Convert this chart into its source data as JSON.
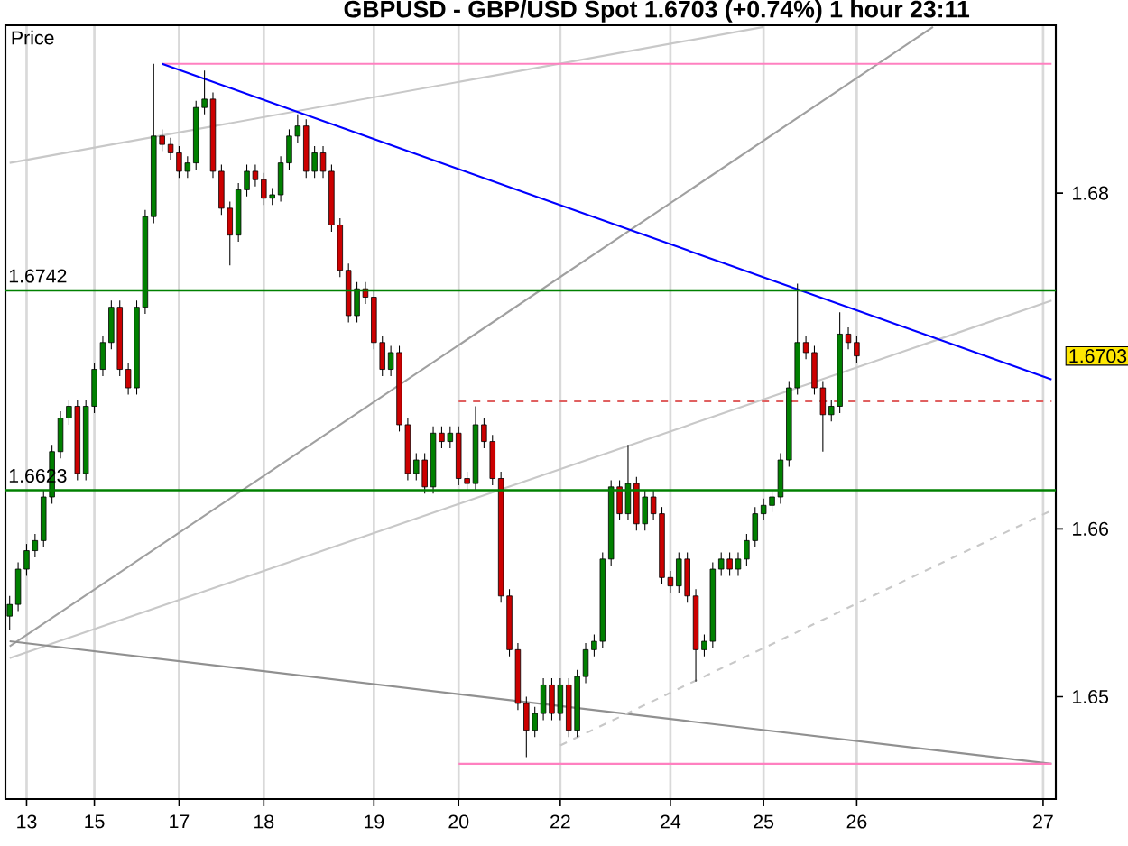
{
  "chart_data": {
    "type": "candlestick",
    "title": "GBPUSD - GBP/USD Spot    1.6703 (+0.74%)    1 hour   23:11",
    "ylabel": "Price",
    "categories": [
      null,
      null,
      "13",
      null,
      null,
      null,
      null,
      null,
      null,
      null,
      "15",
      null,
      null,
      null,
      null,
      null,
      null,
      null,
      null,
      null,
      "17",
      null,
      null,
      null,
      null,
      null,
      null,
      null,
      null,
      null,
      "18",
      null,
      null,
      null,
      null,
      null,
      null,
      null,
      null,
      null,
      null,
      null,
      null,
      "19",
      null,
      null,
      null,
      null,
      null,
      null,
      null,
      null,
      null,
      "20",
      null,
      null,
      null,
      null,
      null,
      null,
      null,
      null,
      null,
      null,
      null,
      "22",
      null,
      null,
      null,
      null,
      null,
      null,
      null,
      null,
      null,
      null,
      null,
      null,
      "24",
      null,
      null,
      null,
      null,
      null,
      null,
      null,
      null,
      null,
      null,
      "25",
      null,
      null,
      null,
      null,
      null,
      null,
      null,
      null,
      null,
      null,
      "26",
      null,
      null,
      null,
      null,
      null,
      null,
      null,
      null,
      null,
      null,
      null,
      null,
      null,
      null,
      null,
      null,
      null,
      null,
      null,
      null,
      null,
      "27",
      null
    ],
    "ohlc": [
      [
        1.6548,
        1.656,
        1.654,
        1.6555
      ],
      [
        1.6555,
        1.658,
        1.6551,
        1.6576
      ],
      [
        1.6576,
        1.6591,
        1.6572,
        1.6587
      ],
      [
        1.6587,
        1.6597,
        1.6583,
        1.6593
      ],
      [
        1.6593,
        1.6623,
        1.6589,
        1.6619
      ],
      [
        1.6619,
        1.665,
        1.6615,
        1.6646
      ],
      [
        1.6646,
        1.667,
        1.6642,
        1.6666
      ],
      [
        1.6666,
        1.6677,
        1.6662,
        1.6673
      ],
      [
        1.6673,
        1.6677,
        1.6629,
        1.6633
      ],
      [
        1.6633,
        1.6677,
        1.6629,
        1.6673
      ],
      [
        1.6673,
        1.6699,
        1.6669,
        1.6695
      ],
      [
        1.6695,
        1.6715,
        1.6691,
        1.6711
      ],
      [
        1.6711,
        1.6736,
        1.6707,
        1.6732
      ],
      [
        1.6732,
        1.6736,
        1.6691,
        1.6695
      ],
      [
        1.6695,
        1.6699,
        1.668,
        1.6684
      ],
      [
        1.6684,
        1.6736,
        1.668,
        1.6732
      ],
      [
        1.6732,
        1.679,
        1.6728,
        1.6786
      ],
      [
        1.6786,
        1.6877,
        1.6782,
        1.6834
      ],
      [
        1.6834,
        1.6838,
        1.6825,
        1.6829
      ],
      [
        1.6829,
        1.6833,
        1.682,
        1.6824
      ],
      [
        1.6824,
        1.6828,
        1.6809,
        1.6813
      ],
      [
        1.6813,
        1.6822,
        1.6809,
        1.6818
      ],
      [
        1.6818,
        1.6855,
        1.6814,
        1.6851
      ],
      [
        1.6851,
        1.6873,
        1.6847,
        1.6856
      ],
      [
        1.6856,
        1.686,
        1.6809,
        1.6813
      ],
      [
        1.6813,
        1.6817,
        1.6787,
        1.6791
      ],
      [
        1.6791,
        1.6795,
        1.6757,
        1.6775
      ],
      [
        1.6775,
        1.6806,
        1.6771,
        1.6802
      ],
      [
        1.6802,
        1.6817,
        1.6798,
        1.6813
      ],
      [
        1.6813,
        1.6817,
        1.6804,
        1.6808
      ],
      [
        1.6808,
        1.6812,
        1.6793,
        1.6797
      ],
      [
        1.6797,
        1.6803,
        1.6793,
        1.6799
      ],
      [
        1.6799,
        1.6822,
        1.6795,
        1.6818
      ],
      [
        1.6818,
        1.6838,
        1.6814,
        1.6834
      ],
      [
        1.6834,
        1.6847,
        1.683,
        1.684
      ],
      [
        1.684,
        1.6844,
        1.6809,
        1.6813
      ],
      [
        1.6813,
        1.6828,
        1.6809,
        1.6824
      ],
      [
        1.6824,
        1.6828,
        1.6809,
        1.6813
      ],
      [
        1.6813,
        1.6817,
        1.6777,
        1.6781
      ],
      [
        1.6781,
        1.6785,
        1.675,
        1.6754
      ],
      [
        1.6754,
        1.6758,
        1.6723,
        1.6727
      ],
      [
        1.6727,
        1.6747,
        1.6723,
        1.6743
      ],
      [
        1.6743,
        1.6747,
        1.6734,
        1.6738
      ],
      [
        1.6738,
        1.6742,
        1.6707,
        1.6711
      ],
      [
        1.6711,
        1.6715,
        1.6691,
        1.6695
      ],
      [
        1.6695,
        1.6709,
        1.6691,
        1.6705
      ],
      [
        1.6705,
        1.6709,
        1.6658,
        1.6662
      ],
      [
        1.6662,
        1.6666,
        1.6629,
        1.6633
      ],
      [
        1.6633,
        1.6645,
        1.6629,
        1.6641
      ],
      [
        1.6641,
        1.6645,
        1.6621,
        1.6625
      ],
      [
        1.6625,
        1.6661,
        1.6621,
        1.6657
      ],
      [
        1.6657,
        1.6661,
        1.6648,
        1.6652
      ],
      [
        1.6652,
        1.6661,
        1.6648,
        1.6657
      ],
      [
        1.6657,
        1.6661,
        1.6626,
        1.663
      ],
      [
        1.663,
        1.6634,
        1.6623,
        1.6627
      ],
      [
        1.6627,
        1.6673,
        1.6623,
        1.6662
      ],
      [
        1.6662,
        1.6666,
        1.6648,
        1.6652
      ],
      [
        1.6652,
        1.6656,
        1.6626,
        1.663
      ],
      [
        1.663,
        1.6634,
        1.6556,
        1.656
      ],
      [
        1.656,
        1.6564,
        1.6524,
        1.6528
      ],
      [
        1.6528,
        1.6532,
        1.6492,
        1.6496
      ],
      [
        1.6496,
        1.65,
        1.6464,
        1.648
      ],
      [
        1.648,
        1.6494,
        1.6476,
        1.649
      ],
      [
        1.649,
        1.6511,
        1.6486,
        1.6507
      ],
      [
        1.6507,
        1.6511,
        1.6486,
        1.649
      ],
      [
        1.649,
        1.6511,
        1.6486,
        1.6507
      ],
      [
        1.6507,
        1.6511,
        1.6476,
        1.648
      ],
      [
        1.648,
        1.6516,
        1.6476,
        1.6512
      ],
      [
        1.6512,
        1.6532,
        1.6508,
        1.6528
      ],
      [
        1.6528,
        1.6537,
        1.6524,
        1.6533
      ],
      [
        1.6533,
        1.6586,
        1.6529,
        1.6582
      ],
      [
        1.6582,
        1.6629,
        1.6578,
        1.6625
      ],
      [
        1.6625,
        1.6629,
        1.6605,
        1.6609
      ],
      [
        1.6609,
        1.665,
        1.6605,
        1.6627
      ],
      [
        1.6627,
        1.6631,
        1.6599,
        1.6603
      ],
      [
        1.6603,
        1.6623,
        1.6599,
        1.6619
      ],
      [
        1.6619,
        1.6623,
        1.6605,
        1.6609
      ],
      [
        1.6609,
        1.6613,
        1.6567,
        1.6571
      ],
      [
        1.6571,
        1.6575,
        1.6562,
        1.6566
      ],
      [
        1.6566,
        1.6586,
        1.6562,
        1.6582
      ],
      [
        1.6582,
        1.6586,
        1.6556,
        1.656
      ],
      [
        1.656,
        1.6564,
        1.6509,
        1.6528
      ],
      [
        1.6528,
        1.6537,
        1.6524,
        1.6533
      ],
      [
        1.6533,
        1.658,
        1.6529,
        1.6576
      ],
      [
        1.6576,
        1.6586,
        1.6572,
        1.6582
      ],
      [
        1.6582,
        1.6586,
        1.6572,
        1.6576
      ],
      [
        1.6576,
        1.6586,
        1.6572,
        1.6582
      ],
      [
        1.6582,
        1.6597,
        1.6578,
        1.6593
      ],
      [
        1.6593,
        1.6613,
        1.6589,
        1.6609
      ],
      [
        1.6609,
        1.6618,
        1.6605,
        1.6614
      ],
      [
        1.6614,
        1.6623,
        1.661,
        1.6619
      ],
      [
        1.6619,
        1.6645,
        1.6615,
        1.6641
      ],
      [
        1.6641,
        1.6688,
        1.6637,
        1.6684
      ],
      [
        1.6684,
        1.6746,
        1.668,
        1.6711
      ],
      [
        1.6711,
        1.6715,
        1.6701,
        1.6705
      ],
      [
        1.6705,
        1.6709,
        1.668,
        1.6684
      ],
      [
        1.6684,
        1.6688,
        1.6646,
        1.6668
      ],
      [
        1.6668,
        1.6677,
        1.6664,
        1.6673
      ],
      [
        1.6673,
        1.6729,
        1.6669,
        1.6716
      ],
      [
        1.6716,
        1.672,
        1.6707,
        1.6711
      ],
      [
        1.6711,
        1.6715,
        1.6699,
        1.6703
      ],
      null,
      null,
      null,
      null,
      null,
      null,
      null,
      null,
      null,
      null,
      null,
      null,
      null,
      null,
      null,
      null,
      null,
      null,
      null,
      null,
      null,
      null,
      null
    ],
    "series": [
      {
        "type": "line",
        "color": "#c8c8c8",
        "values": [
          1.6818,
          null,
          null,
          null,
          null,
          null,
          null,
          null,
          null,
          null,
          null,
          null,
          null,
          null,
          null,
          null,
          null,
          null,
          null,
          null,
          null,
          null,
          null,
          null,
          null,
          null,
          null,
          null,
          null,
          null,
          null,
          null,
          null,
          null,
          null,
          null,
          null,
          null,
          null,
          null,
          null,
          null,
          null,
          null,
          null,
          null,
          null,
          null,
          null,
          null,
          null,
          null,
          null,
          null,
          null,
          null,
          null,
          null,
          null,
          null,
          null,
          null,
          null,
          null,
          null,
          null,
          null,
          null,
          null,
          null,
          null,
          null,
          null,
          null,
          null,
          null,
          null,
          null,
          null,
          null,
          null,
          null,
          null,
          null,
          null,
          null,
          null,
          null,
          null,
          1.6899,
          null,
          null,
          null,
          null,
          null,
          null,
          null,
          null,
          null,
          null,
          null,
          null,
          null,
          null,
          null,
          null,
          null,
          null,
          null,
          null,
          null,
          null,
          null,
          null,
          null,
          null,
          null,
          null,
          null,
          null,
          null,
          null,
          null,
          null
        ]
      },
      {
        "type": "line",
        "color": "#a0a0a0",
        "values": [
          1.653,
          null,
          null,
          null,
          null,
          null,
          null,
          null,
          null,
          null,
          null,
          null,
          null,
          null,
          null,
          null,
          null,
          null,
          null,
          null,
          null,
          null,
          null,
          null,
          null,
          null,
          null,
          null,
          null,
          null,
          null,
          null,
          null,
          null,
          null,
          null,
          null,
          null,
          null,
          null,
          null,
          null,
          null,
          null,
          null,
          null,
          null,
          null,
          null,
          null,
          null,
          null,
          null,
          null,
          null,
          null,
          null,
          null,
          null,
          null,
          null,
          null,
          null,
          null,
          null,
          null,
          null,
          null,
          null,
          null,
          null,
          null,
          null,
          null,
          null,
          null,
          null,
          null,
          null,
          null,
          null,
          null,
          null,
          null,
          null,
          null,
          null,
          null,
          null,
          null,
          null,
          null,
          null,
          null,
          null,
          null,
          null,
          null,
          null,
          null,
          null,
          null,
          null,
          null,
          null,
          null,
          null,
          null,
          null,
          1.6899,
          null,
          null,
          null,
          null,
          null,
          null,
          null,
          null,
          null,
          null,
          null,
          null,
          null,
          null
        ]
      },
      {
        "type": "line",
        "color": "#c8c8c8",
        "values": [
          1.6523,
          null,
          null,
          null,
          null,
          null,
          null,
          null,
          null,
          null,
          null,
          null,
          null,
          null,
          null,
          null,
          null,
          null,
          null,
          null,
          null,
          null,
          null,
          null,
          null,
          null,
          null,
          null,
          null,
          null,
          null,
          null,
          null,
          null,
          null,
          null,
          null,
          null,
          null,
          null,
          null,
          null,
          null,
          null,
          null,
          null,
          null,
          null,
          null,
          null,
          null,
          null,
          null,
          null,
          null,
          null,
          null,
          null,
          null,
          null,
          null,
          null,
          null,
          null,
          null,
          null,
          null,
          null,
          null,
          null,
          null,
          null,
          null,
          null,
          null,
          null,
          null,
          null,
          null,
          null,
          null,
          null,
          null,
          null,
          null,
          null,
          null,
          null,
          null,
          null,
          null,
          null,
          null,
          null,
          null,
          null,
          null,
          null,
          null,
          null,
          null,
          null,
          null,
          null,
          null,
          null,
          null,
          null,
          null,
          null,
          null,
          null,
          null,
          null,
          null,
          null,
          null,
          null,
          null,
          null,
          null,
          null,
          null,
          1.6736
        ]
      },
      {
        "type": "line",
        "color": "#909090",
        "values": [
          1.6533,
          null,
          null,
          null,
          null,
          null,
          null,
          null,
          null,
          null,
          null,
          null,
          null,
          null,
          null,
          null,
          null,
          null,
          null,
          null,
          null,
          null,
          null,
          null,
          null,
          null,
          null,
          null,
          null,
          null,
          null,
          null,
          null,
          null,
          null,
          null,
          null,
          null,
          null,
          null,
          null,
          null,
          null,
          null,
          null,
          null,
          null,
          null,
          null,
          null,
          null,
          null,
          null,
          null,
          null,
          null,
          null,
          null,
          null,
          null,
          null,
          null,
          null,
          null,
          null,
          null,
          null,
          null,
          null,
          null,
          null,
          null,
          null,
          null,
          null,
          null,
          null,
          null,
          null,
          null,
          null,
          null,
          null,
          null,
          null,
          null,
          null,
          null,
          null,
          null,
          null,
          null,
          null,
          null,
          null,
          null,
          null,
          null,
          null,
          null,
          null,
          null,
          null,
          null,
          null,
          null,
          null,
          null,
          null,
          null,
          null,
          null,
          null,
          null,
          null,
          null,
          null,
          null,
          null,
          null,
          null,
          null,
          null,
          1.646
        ]
      },
      {
        "type": "line",
        "color": "#c8c8c8",
        "line_style": "dashed",
        "values": [
          null,
          null,
          null,
          null,
          null,
          null,
          null,
          null,
          null,
          null,
          null,
          null,
          null,
          null,
          null,
          null,
          null,
          null,
          null,
          null,
          null,
          null,
          null,
          null,
          null,
          null,
          null,
          null,
          null,
          null,
          null,
          null,
          null,
          null,
          null,
          null,
          null,
          null,
          null,
          null,
          null,
          null,
          null,
          null,
          null,
          null,
          null,
          null,
          null,
          null,
          null,
          null,
          null,
          null,
          null,
          null,
          null,
          null,
          null,
          null,
          null,
          null,
          null,
          null,
          null,
          1.6471,
          null,
          null,
          null,
          null,
          null,
          null,
          null,
          null,
          null,
          null,
          null,
          null,
          null,
          null,
          null,
          null,
          null,
          null,
          null,
          null,
          null,
          null,
          null,
          null,
          null,
          null,
          null,
          null,
          null,
          null,
          null,
          null,
          null,
          null,
          null,
          null,
          null,
          null,
          null,
          null,
          null,
          null,
          null,
          null,
          null,
          null,
          null,
          null,
          null,
          null,
          null,
          null,
          null,
          null,
          null,
          null,
          null,
          1.6611
        ]
      },
      {
        "type": "line",
        "color": "#ff80c0",
        "values": [
          null,
          null,
          null,
          null,
          null,
          null,
          null,
          null,
          null,
          null,
          null,
          null,
          null,
          null,
          null,
          null,
          null,
          null,
          1.6877,
          null,
          null,
          null,
          null,
          null,
          null,
          null,
          null,
          null,
          null,
          null,
          null,
          null,
          null,
          null,
          null,
          null,
          null,
          null,
          null,
          null,
          null,
          null,
          null,
          null,
          null,
          null,
          null,
          null,
          null,
          null,
          null,
          null,
          null,
          null,
          null,
          null,
          null,
          null,
          null,
          null,
          null,
          null,
          null,
          null,
          null,
          null,
          null,
          null,
          null,
          null,
          null,
          null,
          null,
          null,
          null,
          null,
          null,
          null,
          null,
          null,
          null,
          null,
          null,
          null,
          null,
          null,
          null,
          null,
          null,
          null,
          null,
          null,
          null,
          null,
          null,
          null,
          null,
          null,
          null,
          null,
          null,
          null,
          null,
          null,
          null,
          null,
          null,
          null,
          null,
          null,
          null,
          null,
          null,
          null,
          null,
          null,
          null,
          null,
          null,
          null,
          null,
          null,
          null,
          1.6877
        ]
      },
      {
        "type": "line",
        "color": "#ff80c0",
        "values": [
          null,
          null,
          null,
          null,
          null,
          null,
          null,
          null,
          null,
          null,
          null,
          null,
          null,
          null,
          null,
          null,
          null,
          null,
          null,
          null,
          null,
          null,
          null,
          null,
          null,
          null,
          null,
          null,
          null,
          null,
          null,
          null,
          null,
          null,
          null,
          null,
          null,
          null,
          null,
          null,
          null,
          null,
          null,
          null,
          null,
          null,
          null,
          null,
          null,
          null,
          null,
          null,
          null,
          1.646,
          null,
          null,
          null,
          null,
          null,
          null,
          null,
          null,
          null,
          null,
          null,
          null,
          null,
          null,
          null,
          null,
          null,
          null,
          null,
          null,
          null,
          null,
          null,
          null,
          null,
          null,
          null,
          null,
          null,
          null,
          null,
          null,
          null,
          null,
          null,
          null,
          null,
          null,
          null,
          null,
          null,
          null,
          null,
          null,
          null,
          null,
          null,
          null,
          null,
          null,
          null,
          null,
          null,
          null,
          null,
          null,
          null,
          null,
          null,
          null,
          null,
          null,
          null,
          null,
          null,
          null,
          null,
          null,
          null,
          1.646
        ]
      },
      {
        "type": "line",
        "color": "#e06060",
        "line_style": "dashed",
        "values": [
          null,
          null,
          null,
          null,
          null,
          null,
          null,
          null,
          null,
          null,
          null,
          null,
          null,
          null,
          null,
          null,
          null,
          null,
          null,
          null,
          null,
          null,
          null,
          null,
          null,
          null,
          null,
          null,
          null,
          null,
          null,
          null,
          null,
          null,
          null,
          null,
          null,
          null,
          null,
          null,
          null,
          null,
          null,
          null,
          null,
          null,
          null,
          null,
          null,
          null,
          null,
          null,
          null,
          1.6676,
          null,
          null,
          null,
          null,
          null,
          null,
          null,
          null,
          null,
          null,
          null,
          null,
          null,
          null,
          null,
          null,
          null,
          null,
          null,
          null,
          null,
          null,
          null,
          null,
          null,
          null,
          null,
          null,
          null,
          null,
          null,
          null,
          null,
          null,
          null,
          null,
          null,
          null,
          null,
          null,
          null,
          null,
          null,
          null,
          null,
          null,
          null,
          null,
          null,
          null,
          null,
          null,
          null,
          null,
          null,
          null,
          null,
          null,
          null,
          null,
          null,
          null,
          null,
          null,
          null,
          null,
          null,
          null,
          null,
          1.6676
        ]
      },
      {
        "type": "line",
        "color": "#0000ff",
        "values": [
          null,
          null,
          null,
          null,
          null,
          null,
          null,
          null,
          null,
          null,
          null,
          null,
          null,
          null,
          null,
          null,
          null,
          null,
          1.6877,
          null,
          null,
          null,
          null,
          null,
          null,
          null,
          null,
          null,
          null,
          null,
          null,
          null,
          null,
          null,
          null,
          null,
          null,
          null,
          null,
          null,
          null,
          null,
          null,
          null,
          null,
          null,
          null,
          null,
          null,
          null,
          null,
          null,
          null,
          null,
          null,
          null,
          null,
          null,
          null,
          null,
          null,
          null,
          null,
          null,
          null,
          null,
          null,
          null,
          null,
          null,
          null,
          null,
          null,
          null,
          null,
          null,
          null,
          null,
          null,
          null,
          null,
          null,
          null,
          null,
          null,
          null,
          null,
          null,
          null,
          null,
          null,
          null,
          null,
          null,
          null,
          null,
          null,
          null,
          null,
          null,
          null,
          null,
          null,
          null,
          null,
          null,
          null,
          null,
          null,
          null,
          null,
          null,
          null,
          null,
          null,
          null,
          null,
          null,
          null,
          null,
          null,
          null,
          null,
          1.6689
        ]
      }
    ],
    "ref_lines": [
      {
        "axis": "y",
        "value": 1.6742,
        "label": "1.6742",
        "color": "#008000"
      },
      {
        "axis": "y",
        "value": 1.6623,
        "label": "1.6623",
        "color": "#008000"
      }
    ],
    "annotations": [
      "1.6703"
    ],
    "ylim": [
      1.6439,
      1.69
    ],
    "yticks": [
      1.65,
      1.66,
      1.68
    ],
    "grid": "x"
  }
}
